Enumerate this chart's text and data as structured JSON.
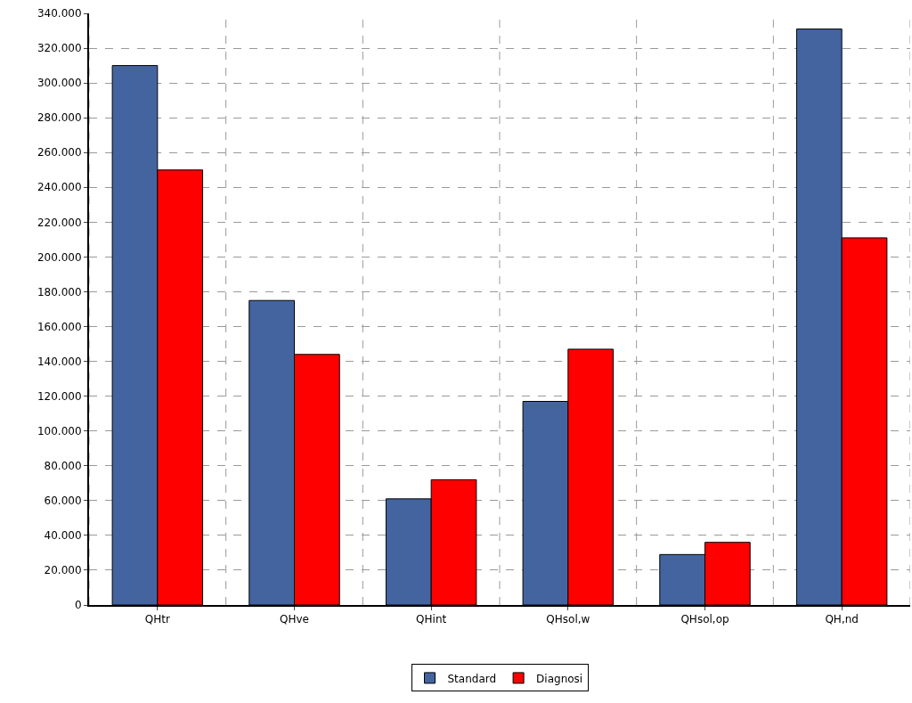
{
  "chart_data": {
    "type": "bar",
    "categories": [
      "QHtr",
      "QHve",
      "QHint",
      "QHsol,w",
      "QHsol,op",
      "QH,nd"
    ],
    "series": [
      {
        "name": "Standard",
        "color": "#4464a0",
        "values": [
          310000,
          175000,
          61000,
          117000,
          29000,
          331000
        ]
      },
      {
        "name": "Diagnosi",
        "color": "#ff0000",
        "values": [
          250000,
          144000,
          72000,
          147000,
          36000,
          211000
        ]
      }
    ],
    "ylim": [
      0,
      340000
    ],
    "yticks": [
      0,
      {
        "value": 20000,
        "label": "20.000"
      },
      {
        "value": 40000,
        "label": "40.000"
      },
      {
        "value": 60000,
        "label": "60.000"
      },
      {
        "value": 80000,
        "label": "80.000"
      },
      {
        "value": 100000,
        "label": "100.000"
      },
      {
        "value": 120000,
        "label": "120.000"
      },
      {
        "value": 140000,
        "label": "140.000"
      },
      {
        "value": 160000,
        "label": "160.000"
      },
      {
        "value": 180000,
        "label": "180.000"
      },
      {
        "value": 200000,
        "label": "200.000"
      },
      {
        "value": 220000,
        "label": "220.000"
      },
      {
        "value": 240000,
        "label": "240.000"
      },
      {
        "value": 260000,
        "label": "260.000"
      },
      {
        "value": 280000,
        "label": "280.000"
      },
      {
        "value": 300000,
        "label": "300.000"
      },
      {
        "value": 320000,
        "label": "320.000"
      },
      {
        "value": 340000,
        "label": "340.000"
      }
    ],
    "grid": true,
    "legend": "bottom",
    "line_style": "dashed"
  }
}
